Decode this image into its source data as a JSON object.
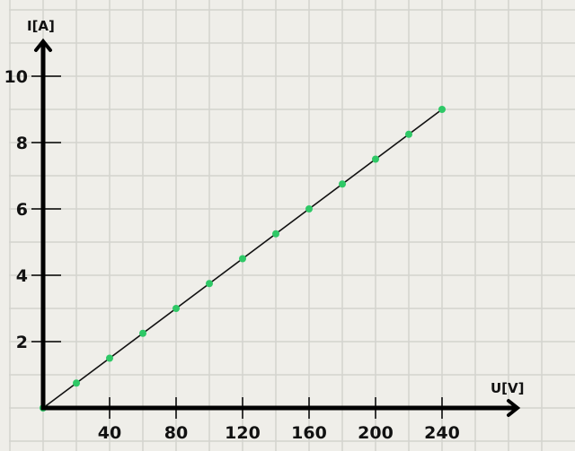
{
  "chart_data": {
    "type": "scatter",
    "title": "",
    "xlabel": "U[V]",
    "ylabel": "I[A]",
    "xlim": [
      0,
      280
    ],
    "ylim": [
      0,
      10.5
    ],
    "x_ticks": [
      40,
      80,
      120,
      160,
      200,
      240
    ],
    "x_tick_labels": [
      "40",
      "80",
      "120",
      "160",
      "200",
      "240"
    ],
    "y_ticks": [
      2,
      4,
      6,
      8,
      10
    ],
    "y_tick_labels": [
      "2",
      "4",
      "6",
      "8",
      "10"
    ],
    "grid": true,
    "point_color": "#2ec866",
    "line_color": "#111111",
    "fit_line": {
      "from": [
        0,
        0
      ],
      "to": [
        240,
        9
      ]
    },
    "points": {
      "x": [
        0,
        20,
        40,
        60,
        80,
        100,
        120,
        140,
        160,
        180,
        200,
        220,
        240
      ],
      "y": [
        0,
        0.75,
        1.5,
        2.25,
        3,
        3.75,
        4.5,
        5.25,
        6,
        6.75,
        7.5,
        8.25,
        9
      ]
    }
  }
}
